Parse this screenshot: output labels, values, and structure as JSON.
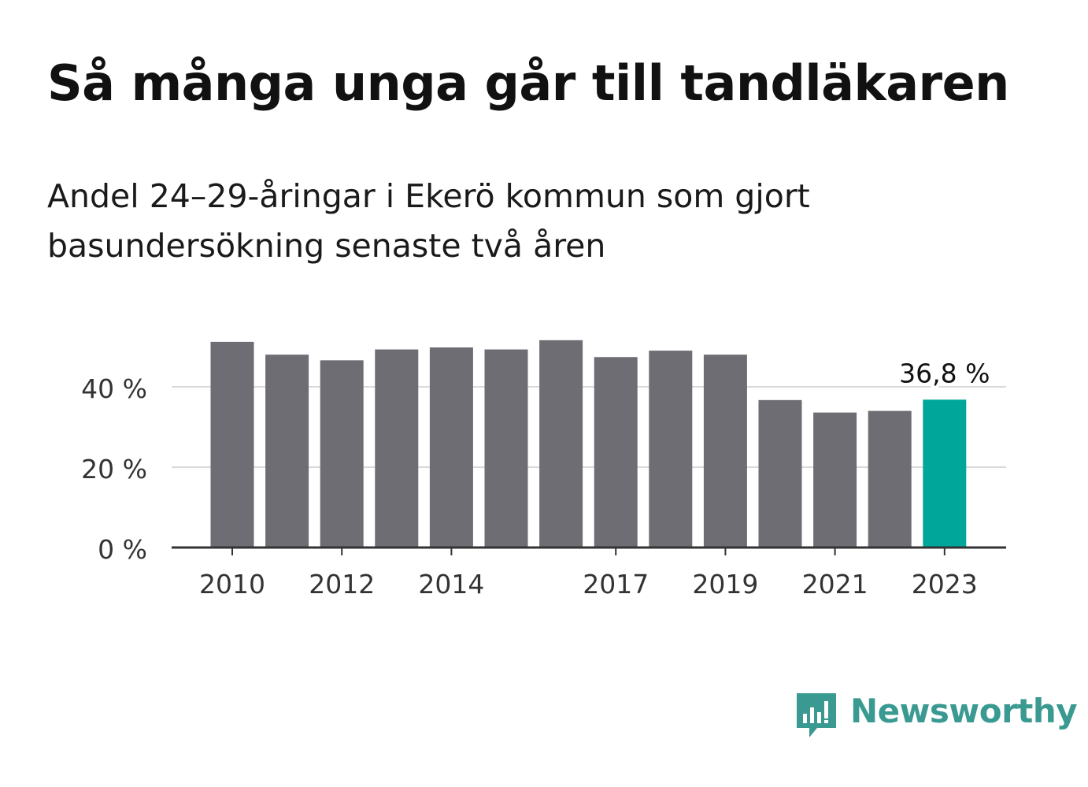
{
  "chart_data": {
    "type": "bar",
    "title": "Så många unga går till tandläkaren",
    "subtitle": "Andel 24–29-åringar i Ekerö kommun som gjort basundersökning senaste två åren",
    "categories": [
      "2010",
      "2011",
      "2012",
      "2013",
      "2014",
      "2015",
      "2016",
      "2017",
      "2018",
      "2019",
      "2020",
      "2021",
      "2022",
      "2023"
    ],
    "x_tick_labels": [
      "2010",
      "",
      "2012",
      "",
      "2014",
      "",
      "",
      "2017",
      "",
      "2019",
      "",
      "2021",
      "",
      "2023"
    ],
    "values": [
      51.2,
      48.0,
      46.6,
      49.3,
      49.8,
      49.3,
      51.6,
      47.4,
      49.0,
      48.0,
      36.7,
      33.6,
      34.0,
      36.8
    ],
    "ylim": [
      0,
      52
    ],
    "y_ticks": [
      0,
      20,
      40
    ],
    "y_tick_labels": [
      "0 %",
      "20 %",
      "40 %"
    ],
    "annotation": {
      "label": "36,8 %"
    },
    "colors": {
      "bar": "#6e6d74",
      "highlight": "#00a699",
      "grid": "#d9d9d9",
      "axis": "#333333"
    },
    "grid": true,
    "xlabel": "",
    "ylabel": ""
  },
  "brand": {
    "name": "Newsworthy",
    "icon": "newsworthy-logo-icon",
    "color": "#3a9a91"
  }
}
